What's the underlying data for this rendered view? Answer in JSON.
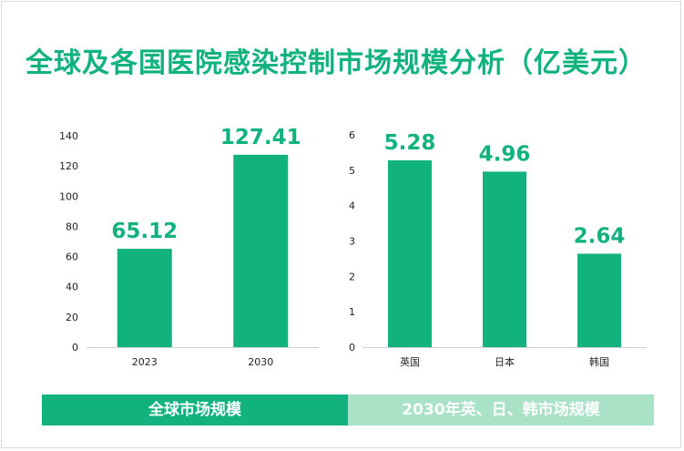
{
  "title": "全球及各国医院感染控制市场规模分析（亿美元）",
  "colors": {
    "accent": "#12b27f",
    "accent_light": "#a9e2c6"
  },
  "banners": {
    "left": "全球市场规模",
    "right": "2030年英、日、韩市场规模"
  },
  "chart_data": [
    {
      "type": "bar",
      "title": "全球市场规模",
      "categories": [
        "2023",
        "2030"
      ],
      "values": [
        65.12,
        127.41
      ],
      "value_labels": [
        "65.12",
        "127.41"
      ],
      "ylim": [
        0,
        140
      ],
      "yticks": [
        0,
        20,
        40,
        60,
        80,
        100,
        120,
        140
      ],
      "xlabel": "",
      "ylabel": ""
    },
    {
      "type": "bar",
      "title": "2030年英、日、韩市场规模",
      "categories": [
        "英国",
        "日本",
        "韩国"
      ],
      "values": [
        5.28,
        4.96,
        2.64
      ],
      "value_labels": [
        "5.28",
        "4.96",
        "2.64"
      ],
      "ylim": [
        0,
        6
      ],
      "yticks": [
        0,
        1,
        2,
        3,
        4,
        5,
        6
      ],
      "xlabel": "",
      "ylabel": ""
    }
  ]
}
